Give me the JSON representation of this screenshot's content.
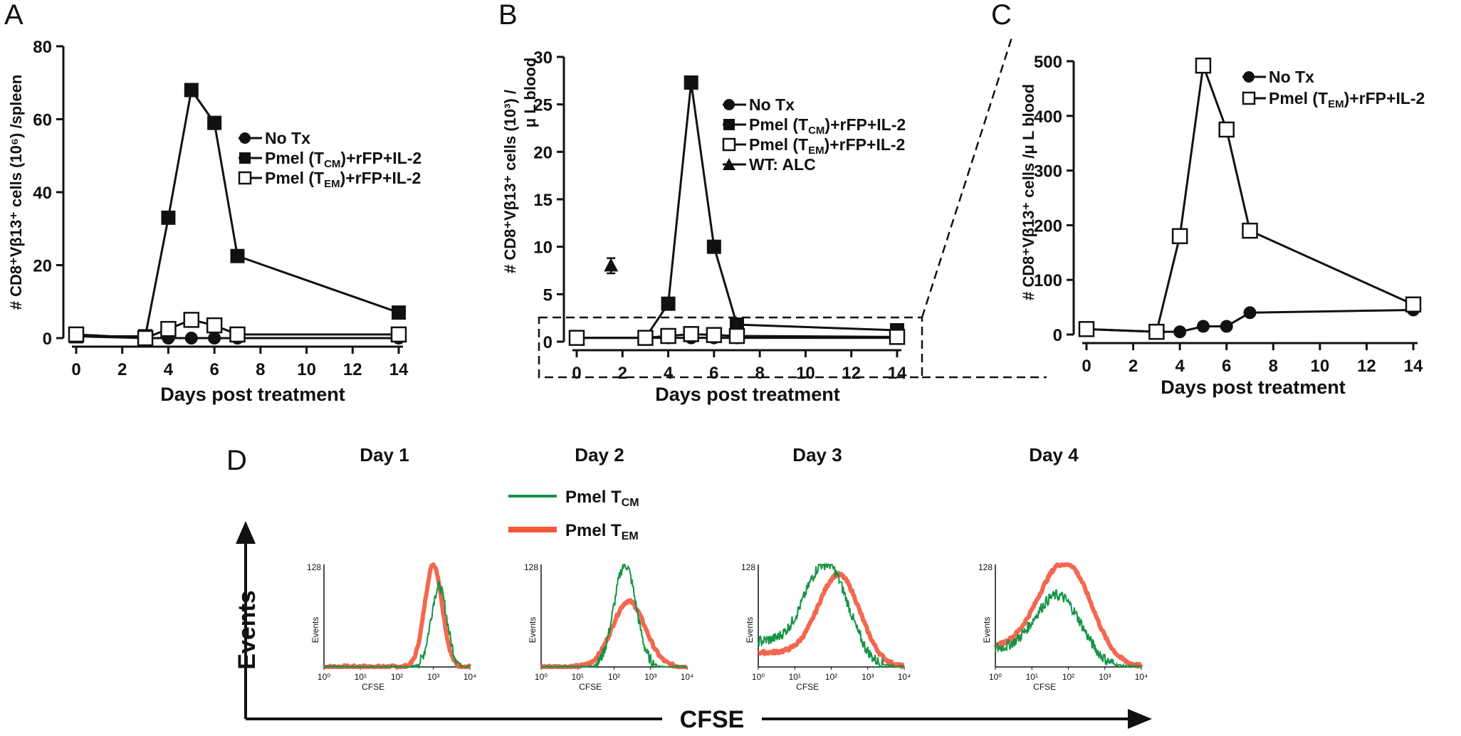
{
  "chart_data": [
    {
      "panel": "A",
      "type": "line",
      "xlabel": "Days post treatment",
      "ylabel": "# CD8⁺Vβ13⁺ cells (10⁶) /spleen",
      "x_ticks": [
        0,
        2,
        4,
        6,
        8,
        10,
        12,
        14
      ],
      "y_ticks": [
        0,
        20,
        40,
        60,
        80
      ],
      "xlim": [
        0,
        14
      ],
      "ylim": [
        0,
        80
      ],
      "legend_position": "upper-right",
      "series": [
        {
          "name": "No Tx",
          "marker": "filled-circle",
          "points": [
            [
              0,
              0.5
            ],
            [
              3,
              0
            ],
            [
              4,
              0
            ],
            [
              5,
              0
            ],
            [
              6,
              0
            ],
            [
              7,
              0
            ],
            [
              14,
              0
            ]
          ]
        },
        {
          "name": "Pmel (T_CM)+rFP+IL-2",
          "marker": "filled-square",
          "points": [
            [
              0,
              0.5
            ],
            [
              3,
              0.5
            ],
            [
              4,
              33
            ],
            [
              5,
              68
            ],
            [
              6,
              59
            ],
            [
              7,
              22.5
            ],
            [
              14,
              7
            ]
          ]
        },
        {
          "name": "Pmel (T_EM)+rFP+IL-2",
          "marker": "open-square",
          "points": [
            [
              0,
              1
            ],
            [
              3,
              0
            ],
            [
              4,
              2.5
            ],
            [
              5,
              5
            ],
            [
              6,
              3.5
            ],
            [
              7,
              1
            ],
            [
              14,
              1
            ]
          ]
        }
      ]
    },
    {
      "panel": "B",
      "type": "line",
      "xlabel": "Days post treatment",
      "ylabel_line1": "# CD8⁺Vβ13⁺ cells (10³) /",
      "ylabel_line2": "μ L blood",
      "x_ticks": [
        0,
        2,
        4,
        6,
        8,
        10,
        12,
        14
      ],
      "y_ticks": [
        0,
        5,
        10,
        15,
        20,
        25,
        30
      ],
      "xlim": [
        0,
        14
      ],
      "ylim": [
        0,
        30
      ],
      "legend_position": "upper-right",
      "series": [
        {
          "name": "No Tx",
          "marker": "filled-circle",
          "points": [
            [
              0,
              0.4
            ],
            [
              3,
              0.4
            ],
            [
              4,
              0.4
            ],
            [
              5,
              0.4
            ],
            [
              6,
              0.4
            ],
            [
              7,
              0.4
            ],
            [
              14,
              0.4
            ]
          ]
        },
        {
          "name": "Pmel (T_CM)+rFP+IL-2",
          "marker": "filled-square",
          "points": [
            [
              0,
              0.4
            ],
            [
              3,
              0.4
            ],
            [
              4,
              4
            ],
            [
              5,
              27.3
            ],
            [
              6,
              10
            ],
            [
              7,
              1.8
            ],
            [
              14,
              1.2
            ]
          ]
        },
        {
          "name": "Pmel (T_EM)+rFP+IL-2",
          "marker": "open-square",
          "points": [
            [
              0,
              0.4
            ],
            [
              3,
              0.4
            ],
            [
              4,
              0.6
            ],
            [
              5,
              0.8
            ],
            [
              6,
              0.7
            ],
            [
              7,
              0.6
            ],
            [
              14,
              0.5
            ]
          ]
        },
        {
          "name": "WT: ALC",
          "marker": "filled-triangle",
          "points": [
            [
              1.5,
              8
            ]
          ],
          "error": [
            0.8
          ]
        }
      ]
    },
    {
      "panel": "C",
      "type": "line",
      "xlabel": "Days post treatment",
      "ylabel": "# CD8⁺Vβ13⁺ cells /μ L blood",
      "x_ticks": [
        0,
        2,
        4,
        6,
        8,
        10,
        12,
        14
      ],
      "y_ticks": [
        0,
        100,
        200,
        300,
        400,
        500
      ],
      "xlim": [
        0,
        14
      ],
      "ylim": [
        0,
        500
      ],
      "legend_position": "upper-right",
      "series": [
        {
          "name": "No Tx",
          "marker": "filled-circle",
          "points": [
            [
              0,
              10
            ],
            [
              3,
              5
            ],
            [
              4,
              5
            ],
            [
              5,
              15
            ],
            [
              6,
              15
            ],
            [
              7,
              40
            ],
            [
              14,
              45
            ]
          ]
        },
        {
          "name": "Pmel (T_EM)+rFP+IL-2",
          "marker": "open-square",
          "points": [
            [
              0,
              10
            ],
            [
              3,
              5
            ],
            [
              4,
              180
            ],
            [
              5,
              492
            ],
            [
              6,
              375
            ],
            [
              7,
              190
            ],
            [
              14,
              55
            ]
          ]
        }
      ]
    },
    {
      "panel": "D",
      "type": "area",
      "xlabel": "CFSE",
      "ylabel": "Events",
      "x_ticks": [
        "10⁰",
        "10¹",
        "10²",
        "10³",
        "10⁴"
      ],
      "y_top_tick": "128",
      "x_scale": "log",
      "xlim": [
        1,
        10000
      ],
      "ylim": [
        0,
        128
      ],
      "legend": [
        {
          "name": "Pmel T_CM",
          "color": "#139443"
        },
        {
          "name": "Pmel T_EM",
          "color": "#f2573c"
        }
      ],
      "histograms": [
        {
          "title": "Day 1",
          "tcm": {
            "peak_log10": 3.15,
            "width": 0.22,
            "height": 100,
            "background": 0
          },
          "tem": {
            "peak_log10": 3.0,
            "width": 0.24,
            "height": 128,
            "background": 0
          }
        },
        {
          "title": "Day 2",
          "tcm": {
            "peak_log10": 2.3,
            "width": 0.3,
            "height": 128,
            "background": 0
          },
          "tem": {
            "peak_log10": 2.4,
            "width": 0.45,
            "height": 82,
            "background": 0
          }
        },
        {
          "title": "Day 3",
          "tcm": {
            "peak_log10": 1.85,
            "width": 0.55,
            "height": 100,
            "background": 32
          },
          "tem": {
            "peak_log10": 2.2,
            "width": 0.55,
            "height": 98,
            "background": 18
          }
        },
        {
          "title": "Day 4",
          "tcm": {
            "peak_log10": 1.7,
            "width": 0.6,
            "height": 68,
            "background": 22
          },
          "tem": {
            "peak_log10": 1.9,
            "width": 0.7,
            "height": 108,
            "background": 24
          }
        }
      ]
    }
  ],
  "panel_letters": [
    "A",
    "B",
    "C",
    "D"
  ],
  "series_text": {
    "no_tx": "No Tx",
    "pmel_prefix": "Pmel (T",
    "sub_cm": "CM",
    "sub_em": "EM",
    "pmel_suffix": ")+rFP+IL-2",
    "wt_alc": "WT: ALC",
    "pmel_t": "Pmel T"
  },
  "hist_small_ylabel": "Events",
  "hist_small_xlabel": "CFSE"
}
